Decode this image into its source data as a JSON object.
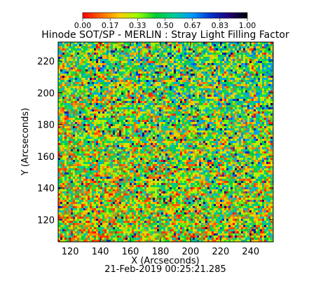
{
  "chart_data": {
    "type": "heatmap",
    "title": "Hinode SOT/SP - MERLIN : Stray Light Filling Factor",
    "subtitle": "21-Feb-2019 00:25:21.285",
    "xlabel": "X (Arcseconds)",
    "ylabel": "Y (Arcseconds)",
    "xlim": [
      112,
      255
    ],
    "ylim": [
      106,
      232
    ],
    "x_ticks": [
      "120",
      "140",
      "160",
      "180",
      "200",
      "220",
      "240"
    ],
    "y_ticks": [
      "120",
      "140",
      "160",
      "180",
      "200",
      "220"
    ],
    "colorbar": {
      "range": [
        0.0,
        1.0
      ],
      "tick_labels": [
        "0.00",
        "0.17",
        "0.33",
        "0.50",
        "0.67",
        "0.83",
        "1.00"
      ],
      "colormap": [
        "#ff0000",
        "#ff6600",
        "#ffcc00",
        "#99ff00",
        "#00cc33",
        "#00cc99",
        "#0099ff",
        "#0033cc",
        "#220077",
        "#000000"
      ]
    },
    "value_distribution": {
      "dominant_range": [
        0.2,
        0.55
      ],
      "typical_value": 0.4,
      "low_regions": "lower-left and bottom",
      "high_regions": "scattered blue patches, denser near top-center and right"
    }
  }
}
